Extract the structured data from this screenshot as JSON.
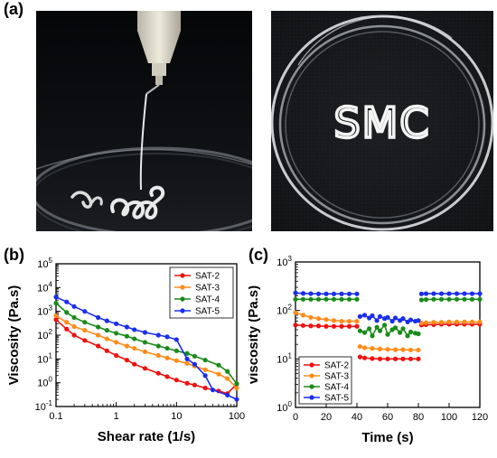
{
  "panel_labels": {
    "a": "(a)",
    "b": "(b)",
    "c": "(c)"
  },
  "photo_b": {
    "text": "SMC"
  },
  "colors": {
    "SAT-2": "#ee1111",
    "SAT-3": "#ff8c1a",
    "SAT-4": "#1a8a1a",
    "SAT-5": "#1a2eee"
  },
  "chart_data": [
    {
      "id": "b",
      "type": "line",
      "xlabel": "Shear rate (1/s)",
      "ylabel": "Viscosity (Pa.s)",
      "xscale": "log",
      "yscale": "log",
      "xlim": [
        0.1,
        100
      ],
      "ylim": [
        0.1,
        100000
      ],
      "xticks": [
        "0.1",
        "1",
        "10",
        "100"
      ],
      "yticks": [
        "10-1",
        "100",
        "101",
        "102",
        "103",
        "104",
        "105"
      ],
      "legend_position": "top-right",
      "series": [
        {
          "name": "SAT-2",
          "x": [
            0.1,
            0.15,
            0.2,
            0.3,
            0.5,
            0.7,
            1,
            1.5,
            2,
            3,
            5,
            7,
            10,
            15,
            20,
            30,
            50,
            70,
            100
          ],
          "y": [
            450,
            180,
            100,
            60,
            35,
            22,
            14,
            9,
            6,
            4,
            2.5,
            1.8,
            1.3,
            0.95,
            0.8,
            0.6,
            0.45,
            0.35,
            0.9
          ]
        },
        {
          "name": "SAT-3",
          "x": [
            0.1,
            0.15,
            0.2,
            0.3,
            0.5,
            0.7,
            1,
            1.5,
            2,
            3,
            5,
            7,
            10,
            15,
            20,
            30,
            50,
            70,
            100
          ],
          "y": [
            650,
            350,
            230,
            160,
            100,
            70,
            50,
            35,
            28,
            20,
            14,
            11,
            8.5,
            6.5,
            5,
            3.5,
            2.3,
            1.5,
            0.6
          ]
        },
        {
          "name": "SAT-4",
          "x": [
            0.1,
            0.15,
            0.2,
            0.3,
            0.5,
            0.7,
            1,
            1.5,
            2,
            3,
            5,
            7,
            10,
            15,
            20,
            30,
            50,
            70,
            100
          ],
          "y": [
            2200,
            900,
            550,
            350,
            220,
            160,
            120,
            90,
            70,
            50,
            35,
            28,
            22,
            17,
            13,
            9,
            5.5,
            3,
            0.9
          ]
        },
        {
          "name": "SAT-5",
          "x": [
            0.1,
            0.15,
            0.2,
            0.3,
            0.5,
            0.7,
            1,
            1.5,
            2,
            3,
            5,
            7,
            10,
            15,
            20,
            30,
            40,
            70,
            100
          ],
          "y": [
            4000,
            2500,
            1600,
            1000,
            550,
            400,
            300,
            220,
            170,
            130,
            100,
            85,
            65,
            10,
            6,
            2,
            0.5,
            0.3,
            0.2
          ]
        }
      ]
    },
    {
      "id": "c",
      "type": "line",
      "xlabel": "Time (s)",
      "ylabel": "viscosity (Pa.s)",
      "yscale": "log",
      "xlim": [
        0,
        120
      ],
      "ylim": [
        1,
        1000
      ],
      "xticks": [
        "0",
        "20",
        "40",
        "60",
        "80",
        "100",
        "120"
      ],
      "yticks": [
        "100",
        "101",
        "102",
        "103"
      ],
      "legend_position": "bottom-left",
      "series": [
        {
          "name": "SAT-2",
          "x": [
            0,
            5,
            10,
            15,
            20,
            25,
            30,
            35,
            40,
            41,
            42,
            45,
            50,
            55,
            60,
            65,
            70,
            75,
            80,
            81,
            82,
            85,
            90,
            95,
            100,
            105,
            110,
            115,
            120
          ],
          "y": [
            50,
            49,
            48,
            48,
            47,
            47,
            47,
            47,
            47,
            null,
            11,
            10.5,
            10.2,
            10,
            10,
            10,
            10,
            10,
            10,
            null,
            50,
            51,
            51,
            52,
            52,
            52,
            52,
            52,
            52
          ]
        },
        {
          "name": "SAT-3",
          "x": [
            0,
            5,
            10,
            15,
            20,
            25,
            30,
            35,
            40,
            41,
            42,
            45,
            50,
            55,
            60,
            65,
            70,
            75,
            80,
            81,
            82,
            85,
            90,
            95,
            100,
            105,
            110,
            115,
            120
          ],
          "y": [
            90,
            80,
            72,
            68,
            65,
            62,
            60,
            60,
            60,
            null,
            18,
            17,
            16.5,
            16,
            15.8,
            15.5,
            15.5,
            15.3,
            15.3,
            null,
            55,
            56,
            57,
            57,
            58,
            58,
            58,
            58,
            58
          ]
        },
        {
          "name": "SAT-4",
          "x": [
            0,
            5,
            10,
            15,
            20,
            25,
            30,
            35,
            40,
            41,
            42,
            45,
            48,
            50,
            53,
            55,
            58,
            60,
            63,
            65,
            68,
            70,
            73,
            75,
            78,
            80,
            81,
            82,
            85,
            90,
            95,
            100,
            105,
            110,
            115,
            120
          ],
          "y": [
            170,
            170,
            170,
            170,
            170,
            170,
            170,
            170,
            170,
            null,
            38,
            35,
            42,
            30,
            45,
            38,
            50,
            32,
            40,
            44,
            35,
            42,
            30,
            36,
            34,
            33,
            null,
            165,
            168,
            170,
            170,
            170,
            170,
            170,
            170,
            170
          ]
        },
        {
          "name": "SAT-5",
          "x": [
            0,
            5,
            10,
            15,
            20,
            25,
            30,
            35,
            40,
            41,
            42,
            45,
            48,
            50,
            53,
            55,
            58,
            60,
            63,
            65,
            68,
            70,
            73,
            75,
            78,
            80,
            81,
            82,
            85,
            90,
            95,
            100,
            105,
            110,
            115,
            120
          ],
          "y": [
            230,
            225,
            222,
            220,
            220,
            220,
            220,
            220,
            220,
            null,
            75,
            80,
            70,
            78,
            62,
            75,
            68,
            72,
            60,
            70,
            62,
            68,
            58,
            64,
            60,
            62,
            null,
            220,
            222,
            222,
            222,
            222,
            222,
            222,
            222,
            222
          ]
        }
      ]
    }
  ]
}
